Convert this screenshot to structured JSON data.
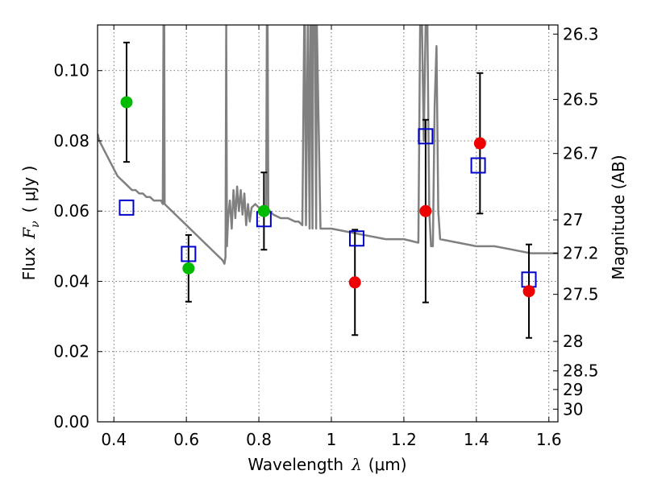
{
  "chart_data": {
    "type": "scatter",
    "title": "",
    "xlabel": {
      "prefix": "Wavelength",
      "symbol": "λ",
      "unit": "(μm)"
    },
    "ylabel": {
      "prefix": "Flux",
      "symbol": "F",
      "subscript": "ν",
      "unit": "( μJy )"
    },
    "y2label": "Magnitude (AB)",
    "xlim": [
      0.355,
      1.625
    ],
    "ylim": [
      0.0,
      0.113
    ],
    "grid": true,
    "x_ticks": [
      0.4,
      0.6,
      0.8,
      1.0,
      1.2,
      1.4,
      1.6
    ],
    "x_tick_labels": [
      "0.4",
      "0.6",
      "0.8",
      "1",
      "1.2",
      "1.4",
      "1.6"
    ],
    "y_ticks": [
      0.0,
      0.02,
      0.04,
      0.06,
      0.08,
      0.1
    ],
    "y_tick_labels": [
      "0.00",
      "0.02",
      "0.04",
      "0.06",
      "0.08",
      "0.10"
    ],
    "y2_ticks": [
      {
        "flux": 0.1104,
        "label": "26.3"
      },
      {
        "flux": 0.0918,
        "label": "26.5"
      },
      {
        "flux": 0.0764,
        "label": "26.7"
      },
      {
        "flux": 0.0575,
        "label": "27"
      },
      {
        "flux": 0.048,
        "label": "27.2"
      },
      {
        "flux": 0.0363,
        "label": "27.5"
      },
      {
        "flux": 0.0229,
        "label": "28"
      },
      {
        "flux": 0.0145,
        "label": "28.5"
      },
      {
        "flux": 0.0092,
        "label": "29"
      },
      {
        "flux": 0.0036,
        "label": "30"
      }
    ],
    "colors": {
      "green_points": "#00bb00",
      "red_points": "#ee0000",
      "model_squares": "#0000cc",
      "template_line": "#808080",
      "errorbars": "#000000"
    },
    "series": [
      {
        "kind": "template_line",
        "x": [
          0.355,
          0.36,
          0.37,
          0.38,
          0.39,
          0.4,
          0.41,
          0.42,
          0.43,
          0.44,
          0.45,
          0.46,
          0.47,
          0.48,
          0.49,
          0.5,
          0.51,
          0.52,
          0.53,
          0.535,
          0.537,
          0.539,
          0.54,
          0.55,
          0.56,
          0.57,
          0.58,
          0.59,
          0.6,
          0.62,
          0.64,
          0.66,
          0.68,
          0.7,
          0.705,
          0.708,
          0.71,
          0.712,
          0.715,
          0.72,
          0.725,
          0.73,
          0.735,
          0.74,
          0.745,
          0.75,
          0.755,
          0.76,
          0.765,
          0.77,
          0.775,
          0.78,
          0.79,
          0.8,
          0.81,
          0.82,
          0.822,
          0.824,
          0.826,
          0.83,
          0.84,
          0.86,
          0.88,
          0.9,
          0.91,
          0.92,
          0.925,
          0.927,
          0.93,
          0.935,
          0.94,
          0.942,
          0.945,
          0.948,
          0.95,
          0.955,
          0.958,
          0.96,
          0.97,
          0.98,
          1.0,
          1.05,
          1.1,
          1.15,
          1.2,
          1.24,
          1.245,
          1.25,
          1.255,
          1.26,
          1.265,
          1.27,
          1.275,
          1.28,
          1.285,
          1.29,
          1.295,
          1.3,
          1.35,
          1.4,
          1.45,
          1.5,
          1.55,
          1.6,
          1.625
        ],
        "y": [
          0.082,
          0.08,
          0.078,
          0.076,
          0.074,
          0.072,
          0.07,
          0.069,
          0.068,
          0.067,
          0.066,
          0.066,
          0.065,
          0.065,
          0.064,
          0.064,
          0.063,
          0.063,
          0.063,
          0.062,
          0.113,
          0.113,
          0.062,
          0.061,
          0.06,
          0.059,
          0.058,
          0.057,
          0.056,
          0.054,
          0.052,
          0.05,
          0.048,
          0.046,
          0.045,
          0.047,
          0.113,
          0.05,
          0.058,
          0.063,
          0.055,
          0.066,
          0.058,
          0.067,
          0.06,
          0.066,
          0.059,
          0.065,
          0.056,
          0.062,
          0.057,
          0.061,
          0.062,
          0.061,
          0.061,
          0.06,
          0.113,
          0.113,
          0.06,
          0.06,
          0.059,
          0.058,
          0.058,
          0.057,
          0.057,
          0.056,
          0.113,
          0.113,
          0.056,
          0.113,
          0.055,
          0.113,
          0.113,
          0.055,
          0.113,
          0.113,
          0.055,
          0.113,
          0.055,
          0.055,
          0.055,
          0.054,
          0.053,
          0.052,
          0.052,
          0.051,
          0.113,
          0.113,
          0.08,
          0.113,
          0.113,
          0.06,
          0.05,
          0.05,
          0.09,
          0.107,
          0.06,
          0.052,
          0.051,
          0.05,
          0.05,
          0.049,
          0.048,
          0.048,
          0.048
        ]
      },
      {
        "kind": "green_points",
        "x": [
          0.435,
          0.606,
          0.814
        ],
        "y": [
          0.091,
          0.0437,
          0.06
        ],
        "err": [
          0.017,
          0.0095,
          0.011
        ]
      },
      {
        "kind": "red_points",
        "x": [
          1.065,
          1.26,
          1.41,
          1.545
        ],
        "y": [
          0.0397,
          0.06,
          0.0793,
          0.0372
        ],
        "err": [
          0.015,
          0.026,
          0.02,
          0.0133
        ]
      },
      {
        "kind": "model_squares",
        "x": [
          0.435,
          0.606,
          0.814,
          1.07,
          1.26,
          1.405,
          1.545
        ],
        "y": [
          0.061,
          0.0478,
          0.0577,
          0.0522,
          0.0813,
          0.073,
          0.0405
        ]
      }
    ]
  }
}
